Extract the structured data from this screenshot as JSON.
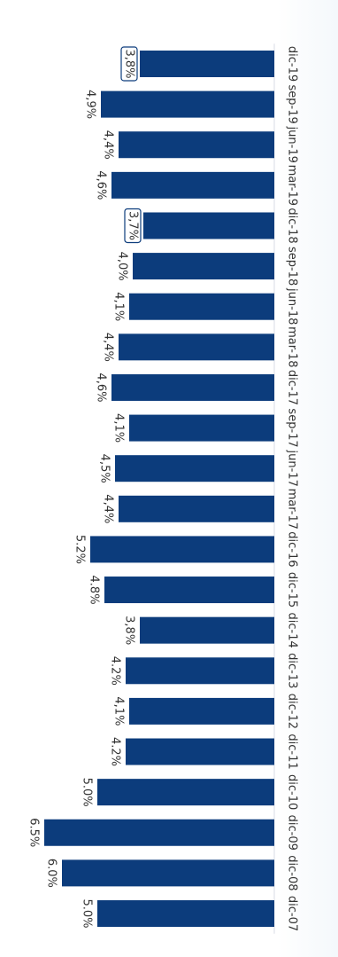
{
  "chart_data": {
    "type": "bar",
    "orientation": "rotated-90",
    "categories": [
      "dic-07",
      "dic-08",
      "dic-09",
      "dic-10",
      "dic-11",
      "dic-12",
      "dic-13",
      "dic-14",
      "dic-15",
      "dic-16",
      "mar-17",
      "jun-17",
      "sep-17",
      "dic-17",
      "mar-18",
      "jun-18",
      "sep-18",
      "dic-18",
      "mar-19",
      "jun-19",
      "sep-19",
      "dic-19"
    ],
    "values": [
      5.0,
      6.0,
      6.5,
      5.0,
      4.2,
      4.1,
      4.2,
      3.8,
      4.8,
      5.2,
      4.4,
      4.5,
      4.1,
      4.6,
      4.4,
      4.1,
      4.0,
      3.7,
      4.6,
      4.4,
      4.9,
      3.8
    ],
    "labels": [
      "5.0%",
      "6.0%",
      "6.5%",
      "5.0%",
      "4.2%",
      "4,1%",
      "4.2%",
      "3,8%",
      "4.8%",
      "5.2%",
      "4,4%",
      "4,5%",
      "4,1%",
      "4,6%",
      "4,4%",
      "4,1%",
      "4,0%",
      "3,7%",
      "4,6%",
      "4,4%",
      "4,9%",
      "3,8%"
    ],
    "highlighted": [
      "dic-18",
      "dic-19"
    ],
    "title": "",
    "xlabel": "",
    "ylabel": "",
    "ylim": [
      0,
      7
    ],
    "grid": false,
    "bar_color": "#0c3c7c"
  }
}
